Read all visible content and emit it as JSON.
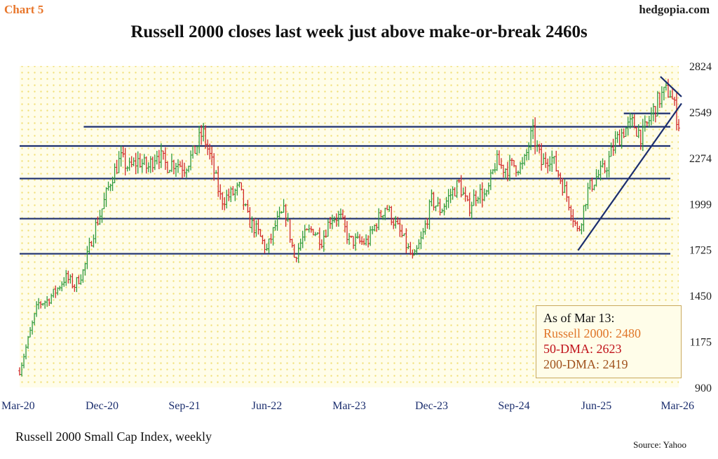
{
  "header": {
    "chart_tag": "Chart 5",
    "brand": "hedgopia.com",
    "title": "Russell 2000 closes last week just above make-or-break 2460s"
  },
  "footer": {
    "subtitle": "Russell 2000 Small Cap Index, weekly",
    "source": "Source: Yahoo"
  },
  "legend": {
    "heading": "As of Mar 13:",
    "price": "Russell 2000: 2480",
    "dma50": "50-DMA: 2623",
    "dma200": "200-DMA: 2419"
  },
  "colors": {
    "up": "#2e9a3c",
    "down": "#d12a2a",
    "lines": "#1b2e6e",
    "background": "#fffde9",
    "dots": "#f2e07a"
  },
  "chart_data": {
    "type": "ohlc",
    "title": "Russell 2000 closes last week just above make-or-break 2460s",
    "xlabel": "",
    "ylabel": "",
    "x_ticks": [
      "Mar-20",
      "Dec-20",
      "Sep-21",
      "Jun-22",
      "Mar-23",
      "Dec-23",
      "Sep-24",
      "Jun-25",
      "Mar-26"
    ],
    "y_ticks": [
      900,
      1175,
      1450,
      1725,
      1999,
      2274,
      2549,
      2824
    ],
    "ylim": [
      900,
      2824
    ],
    "grid": false,
    "legend_placement": "bottom-right",
    "anchors": [
      [
        "Mar-20",
        1000
      ],
      [
        "Apr-20",
        1200
      ],
      [
        "May-20",
        1400
      ],
      [
        "Jun-20",
        1420
      ],
      [
        "Jul-20",
        1480
      ],
      [
        "Aug-20",
        1560
      ],
      [
        "Sep-20",
        1510
      ],
      [
        "Oct-20",
        1600
      ],
      [
        "Nov-20",
        1820
      ],
      [
        "Dec-20",
        1970
      ],
      [
        "Jan-21",
        2150
      ],
      [
        "Feb-21",
        2270
      ],
      [
        "Mar-21",
        2210
      ],
      [
        "Apr-21",
        2260
      ],
      [
        "May-21",
        2210
      ],
      [
        "Jun-21",
        2310
      ],
      [
        "Jul-21",
        2230
      ],
      [
        "Aug-21",
        2250
      ],
      [
        "Sep-21",
        2220
      ],
      [
        "Oct-21",
        2300
      ],
      [
        "Nov-21",
        2430
      ],
      [
        "Dec-21",
        2240
      ],
      [
        "Jan-22",
        2020
      ],
      [
        "Feb-22",
        2050
      ],
      [
        "Mar-22",
        2090
      ],
      [
        "Apr-22",
        1900
      ],
      [
        "May-22",
        1830
      ],
      [
        "Jun-22",
        1720
      ],
      [
        "Jul-22",
        1880
      ],
      [
        "Aug-22",
        1960
      ],
      [
        "Sep-22",
        1680
      ],
      [
        "Oct-22",
        1800
      ],
      [
        "Nov-22",
        1850
      ],
      [
        "Dec-22",
        1780
      ],
      [
        "Jan-23",
        1920
      ],
      [
        "Feb-23",
        1920
      ],
      [
        "Mar-23",
        1780
      ],
      [
        "Apr-23",
        1770
      ],
      [
        "May-23",
        1770
      ],
      [
        "Jun-23",
        1890
      ],
      [
        "Jul-23",
        1990
      ],
      [
        "Aug-23",
        1880
      ],
      [
        "Sep-23",
        1780
      ],
      [
        "Oct-23",
        1660
      ],
      [
        "Nov-23",
        1800
      ],
      [
        "Dec-23",
        2020
      ],
      [
        "Jan-24",
        1960
      ],
      [
        "Feb-24",
        2050
      ],
      [
        "Mar-24",
        2120
      ],
      [
        "Apr-24",
        1970
      ],
      [
        "May-24",
        2070
      ],
      [
        "Jun-24",
        2040
      ],
      [
        "Jul-24",
        2250
      ],
      [
        "Aug-24",
        2210
      ],
      [
        "Sep-24",
        2230
      ],
      [
        "Oct-24",
        2220
      ],
      [
        "Nov-24",
        2430
      ],
      [
        "Dec-24",
        2240
      ],
      [
        "Jan-25",
        2290
      ],
      [
        "Feb-25",
        2160
      ],
      [
        "Mar-25",
        2010
      ],
      [
        "Apr-25",
        1820
      ],
      [
        "May-25",
        2070
      ],
      [
        "Jun-25",
        2160
      ],
      [
        "Jul-25",
        2210
      ],
      [
        "Aug-25",
        2360
      ],
      [
        "Sep-25",
        2440
      ],
      [
        "Oct-25",
        2480
      ],
      [
        "Nov-25",
        2400
      ],
      [
        "Dec-25",
        2530
      ],
      [
        "Jan-26",
        2640
      ],
      [
        "Feb-26",
        2680
      ],
      [
        "Mar-26",
        2480
      ]
    ],
    "horizontal_levels": [
      {
        "y": 2460,
        "from": "Oct-20",
        "to": "Mar-26"
      },
      {
        "y": 2345,
        "from": "Mar-20",
        "to": "Mar-26"
      },
      {
        "y": 2150,
        "from": "Mar-20",
        "to": "Mar-26"
      },
      {
        "y": 1910,
        "from": "Mar-20",
        "to": "Mar-26"
      },
      {
        "y": 1700,
        "from": "Mar-20",
        "to": "Mar-26"
      },
      {
        "y": 2540,
        "from": "Sep-25",
        "to": "Mar-26"
      }
    ],
    "trendlines": [
      {
        "from": [
          "Apr-25",
          1720
        ],
        "to": [
          "Mar-26",
          2600
        ]
      },
      {
        "from": [
          "Jan-26",
          2760
        ],
        "to": [
          "Mar-26",
          2640
        ]
      }
    ]
  }
}
